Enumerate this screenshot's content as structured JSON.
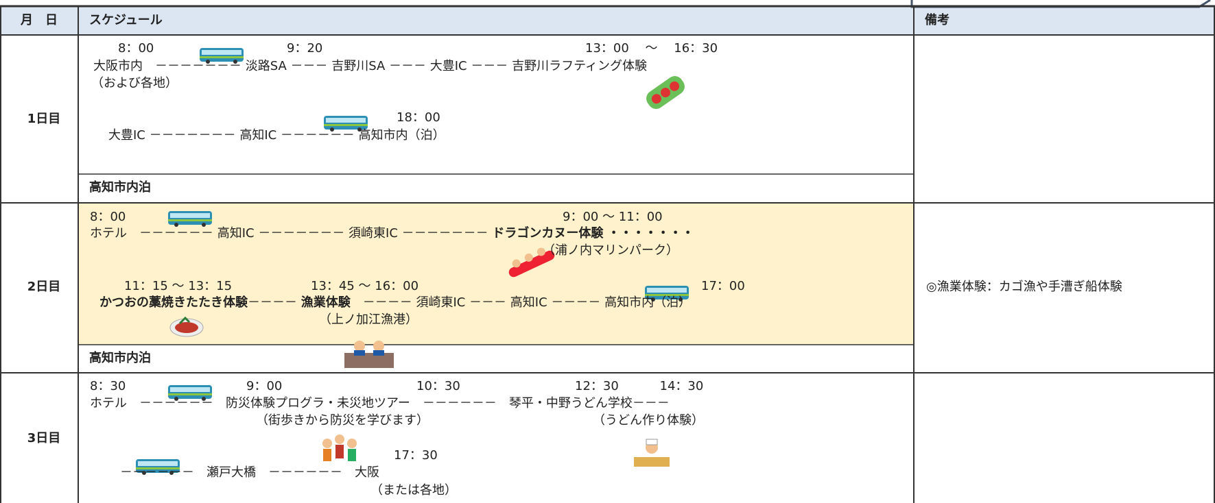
{
  "header": {
    "date": "月　日",
    "schedule": "スケジュール",
    "notes": "備考"
  },
  "days": [
    {
      "label": "1日目",
      "schedule": [
        "8：00",
        "9：20",
        "13：00　 ～　 16：30",
        "大阪市内　－－－－－－－ 淡路SA －－－ 吉野川SA －－－ 大豊IC －－－ 吉野川ラフティング体験",
        "（および各地）",
        "18：00",
        "大豊IC －－－－－－－ 高知IC －－－－－－ 高知市内（泊）"
      ],
      "stay": "高知市内泊"
    },
    {
      "label": "2日目",
      "schedule": [
        "8：00",
        "9：00 ～ 11：00",
        "ホテル　－－－－－－ 高知IC －－－－－－－ 須崎東IC －－－－－－－ ",
        "ドラゴンカヌー体験 ・・・・・・・",
        "（浦ノ内マリンパーク）",
        "11：15 ～ 13：15",
        "13：45 ～ 16：00",
        "17：00",
        "かつおの藁焼きたたき体験",
        "－－－－ ",
        "漁業体験",
        "　－－－－ 須崎東IC －－－ 高知IC －－－－ 高知市内（泊）",
        "（上ノ加江漁港）"
      ],
      "stay": "高知市内泊",
      "note": "◎漁業体験：カゴ漁や手漕ぎ船体験"
    },
    {
      "label": "3日目",
      "schedule": [
        "8：30",
        "9：00",
        "10：30",
        "12：30　　　 14：30",
        "ホテル　－－－－－－　防災体験プログラ・未災地ツアー　－－－－－－　琴平・中野うどん学校－－－",
        "（街歩きから防災を学びます）",
        "（うどん作り体験）",
        "17：30",
        "－－－－－－　瀬戸大橋　－－－－－－　大阪",
        "（または各地）"
      ]
    }
  ]
}
